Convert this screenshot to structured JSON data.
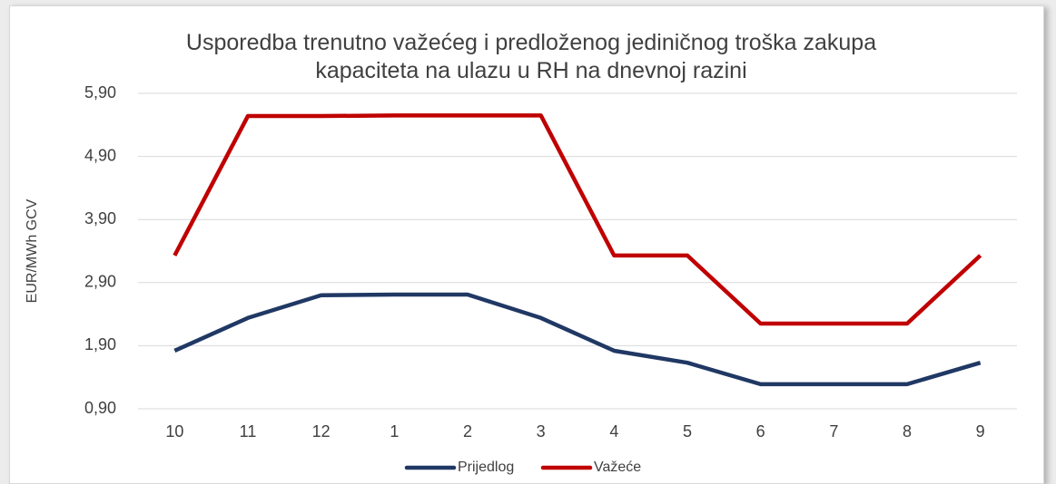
{
  "chart_data": {
    "type": "line",
    "title": "Usporedba trenutno važećeg i predloženog jediničnog troška zakupa kapaciteta na ulazu u RH na dnevnoj razini",
    "y_label": "EUR/MWh GCV",
    "categories": [
      "10",
      "11",
      "12",
      "1",
      "2",
      "3",
      "4",
      "5",
      "6",
      "7",
      "8",
      "9"
    ],
    "series": [
      {
        "name": "Prijedlog",
        "color": "#203864",
        "values": [
          1.82,
          2.34,
          2.7,
          2.71,
          2.71,
          2.34,
          1.82,
          1.63,
          1.29,
          1.29,
          1.29,
          1.63
        ]
      },
      {
        "name": "Važeće",
        "color": "#c00000",
        "values": [
          3.33,
          5.54,
          5.54,
          5.55,
          5.55,
          5.55,
          3.33,
          3.33,
          2.25,
          2.25,
          2.25,
          3.33
        ]
      }
    ],
    "ylim": [
      0.9,
      5.9
    ],
    "yticks": [
      {
        "value": 0.9,
        "label": "0,90"
      },
      {
        "value": 1.9,
        "label": "1,90"
      },
      {
        "value": 2.9,
        "label": "2,90"
      },
      {
        "value": 3.9,
        "label": "3,90"
      },
      {
        "value": 4.9,
        "label": "4,90"
      },
      {
        "value": 5.9,
        "label": "5,90"
      }
    ],
    "grid": true,
    "legend": "bottom"
  }
}
